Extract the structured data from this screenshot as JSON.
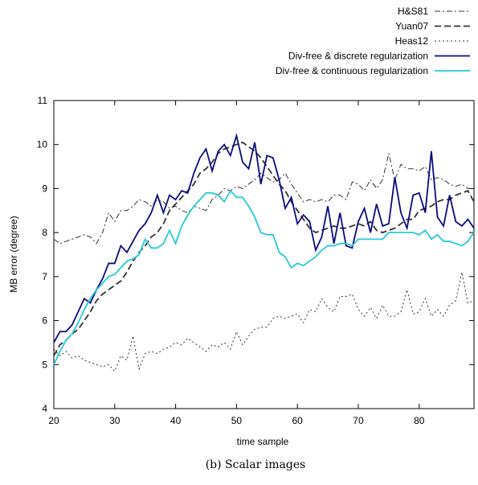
{
  "chart_data": {
    "type": "line",
    "caption": "(b) Scalar images",
    "x_label": "time sample",
    "y_label": "MB error (degree)",
    "xlim": [
      20,
      89
    ],
    "ylim": [
      4,
      11
    ],
    "xticks": [
      20,
      30,
      40,
      50,
      60,
      70,
      80
    ],
    "yticks": [
      4,
      5,
      6,
      7,
      8,
      9,
      10,
      11
    ],
    "legend": "top-right",
    "x": [
      20,
      21,
      22,
      23,
      24,
      25,
      26,
      27,
      28,
      29,
      30,
      31,
      32,
      33,
      34,
      35,
      36,
      37,
      38,
      39,
      40,
      41,
      42,
      43,
      44,
      45,
      46,
      47,
      48,
      49,
      50,
      51,
      52,
      53,
      54,
      55,
      56,
      57,
      58,
      59,
      60,
      61,
      62,
      63,
      64,
      65,
      66,
      67,
      68,
      69,
      70,
      71,
      72,
      73,
      74,
      75,
      76,
      77,
      78,
      79,
      80,
      81,
      82,
      83,
      84,
      85,
      86,
      87,
      88,
      89
    ],
    "series": [
      {
        "name": "H&S81",
        "color": "#333333",
        "dash": "7,3,2,3",
        "width": 1,
        "values": [
          7.85,
          7.75,
          7.8,
          7.85,
          7.9,
          7.95,
          7.9,
          7.75,
          8.0,
          8.45,
          8.25,
          8.5,
          8.5,
          8.6,
          8.75,
          8.7,
          8.6,
          8.75,
          8.7,
          8.55,
          8.6,
          8.5,
          8.45,
          8.6,
          8.55,
          8.5,
          8.75,
          8.85,
          9.0,
          8.95,
          9.05,
          9.0,
          9.1,
          9.2,
          9.35,
          9.25,
          9.15,
          9.2,
          9.35,
          9.1,
          8.9,
          8.7,
          8.75,
          8.7,
          8.75,
          8.7,
          8.85,
          8.85,
          8.75,
          9.15,
          9.1,
          8.95,
          9.2,
          9.0,
          9.2,
          9.8,
          9.2,
          9.55,
          9.45,
          9.45,
          9.4,
          9.5,
          9.2,
          9.25,
          9.2,
          9.1,
          9.05,
          9.1,
          9.0,
          9.0
        ]
      },
      {
        "name": "Yuan07",
        "color": "#333333",
        "dash": "8,4",
        "width": 1.8,
        "values": [
          5.2,
          5.45,
          5.55,
          5.7,
          5.8,
          6.0,
          6.2,
          6.45,
          6.6,
          6.7,
          6.8,
          6.9,
          7.1,
          7.35,
          7.55,
          7.7,
          7.9,
          8.0,
          8.2,
          8.5,
          8.65,
          8.8,
          8.95,
          9.1,
          9.35,
          9.45,
          9.6,
          9.8,
          9.9,
          9.95,
          10.0,
          10.05,
          9.95,
          9.85,
          9.7,
          9.5,
          9.3,
          9.1,
          8.95,
          8.7,
          8.5,
          8.3,
          8.1,
          8.0,
          8.05,
          8.1,
          8.15,
          8.1,
          8.1,
          8.15,
          8.2,
          8.15,
          8.25,
          8.05,
          8.0,
          8.05,
          8.1,
          8.2,
          8.3,
          8.3,
          8.5,
          8.55,
          8.6,
          8.7,
          8.75,
          8.75,
          8.85,
          8.9,
          8.95,
          8.7
        ]
      },
      {
        "name": "Heas12",
        "color": "#333333",
        "dash": "2,3",
        "width": 1,
        "values": [
          5.35,
          5.2,
          5.3,
          5.15,
          5.2,
          5.1,
          5.05,
          5.0,
          4.95,
          5.0,
          4.85,
          5.2,
          5.1,
          5.65,
          4.9,
          5.25,
          5.3,
          5.25,
          5.35,
          5.4,
          5.5,
          5.45,
          5.6,
          5.5,
          5.4,
          5.3,
          5.45,
          5.4,
          5.5,
          5.35,
          5.75,
          5.45,
          5.65,
          5.8,
          5.85,
          5.85,
          6.05,
          6.1,
          6.05,
          6.1,
          6.15,
          5.95,
          6.25,
          6.2,
          6.5,
          6.3,
          6.2,
          6.55,
          6.55,
          6.6,
          6.25,
          6.1,
          6.3,
          6.05,
          6.35,
          6.1,
          6.1,
          6.2,
          6.7,
          6.15,
          6.2,
          6.5,
          6.1,
          6.25,
          6.1,
          6.35,
          6.45,
          7.1,
          6.4,
          6.45
        ]
      },
      {
        "name": "Div-free & discrete regularization",
        "color": "#0a0a80",
        "dash": "none",
        "width": 1.8,
        "values": [
          5.5,
          5.75,
          5.75,
          5.9,
          6.2,
          6.5,
          6.4,
          6.7,
          6.95,
          7.3,
          7.3,
          7.7,
          7.55,
          7.8,
          8.05,
          8.2,
          8.45,
          8.85,
          8.45,
          8.85,
          8.75,
          8.95,
          8.9,
          9.35,
          9.7,
          9.9,
          9.4,
          9.85,
          10.0,
          9.75,
          10.2,
          9.6,
          9.45,
          10.05,
          9.1,
          9.75,
          9.7,
          9.2,
          8.55,
          8.8,
          8.2,
          8.4,
          8.25,
          7.6,
          7.9,
          8.6,
          7.75,
          8.45,
          7.7,
          7.65,
          8.25,
          8.55,
          8.0,
          8.65,
          8.15,
          8.2,
          9.25,
          8.45,
          8.1,
          8.85,
          8.9,
          8.45,
          9.85,
          8.35,
          8.15,
          8.85,
          8.25,
          8.15,
          8.3,
          8.1
        ]
      },
      {
        "name": "Div-free & continuous regularization",
        "color": "#22ccd8",
        "dash": "none",
        "width": 1.8,
        "values": [
          5.0,
          5.3,
          5.55,
          5.7,
          5.95,
          6.25,
          6.5,
          6.7,
          6.85,
          7.0,
          7.05,
          7.2,
          7.35,
          7.4,
          7.5,
          7.85,
          7.65,
          7.65,
          7.75,
          8.05,
          7.75,
          8.15,
          8.4,
          8.6,
          8.75,
          8.9,
          8.9,
          8.85,
          8.7,
          8.95,
          8.8,
          8.8,
          8.6,
          8.35,
          8.0,
          7.95,
          7.95,
          7.55,
          7.45,
          7.2,
          7.3,
          7.25,
          7.35,
          7.45,
          7.6,
          7.7,
          7.7,
          7.75,
          7.75,
          7.7,
          7.85,
          7.85,
          7.85,
          7.85,
          7.85,
          8.0,
          8.0,
          8.0,
          8.0,
          8.0,
          7.95,
          8.05,
          7.85,
          7.95,
          7.8,
          7.8,
          7.75,
          7.7,
          7.8,
          8.0
        ]
      }
    ]
  }
}
